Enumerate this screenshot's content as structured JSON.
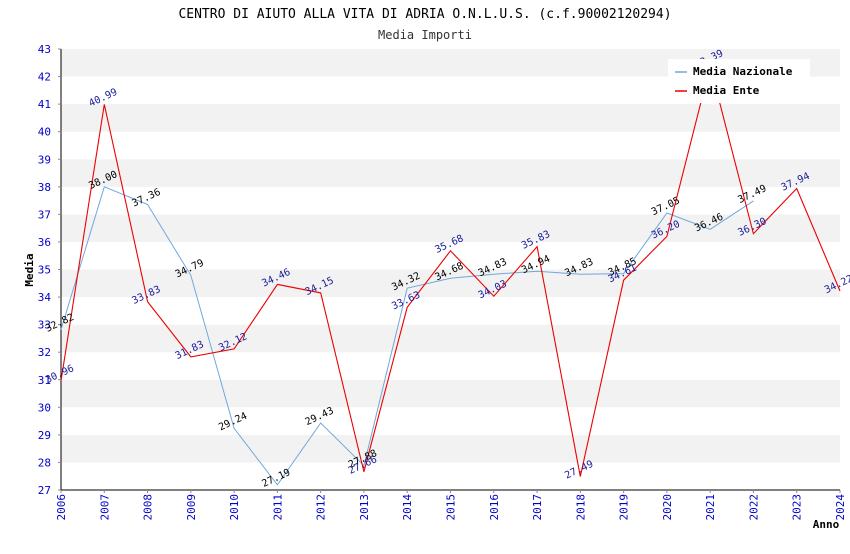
{
  "chart_data": {
    "type": "line",
    "title": "CENTRO DI AIUTO ALLA VITA DI ADRIA O.N.L.U.S. (c.f.90002120294)",
    "subtitle": "Media Importi",
    "xlabel": "Anno",
    "ylabel": "Media",
    "xlim": [
      2006,
      2024
    ],
    "ylim": [
      27,
      43
    ],
    "y_ticks": [
      27,
      28,
      29,
      30,
      31,
      32,
      33,
      34,
      35,
      36,
      37,
      38,
      39,
      40,
      41,
      42,
      43
    ],
    "x_ticks": [
      2006,
      2007,
      2008,
      2009,
      2010,
      2011,
      2012,
      2013,
      2014,
      2015,
      2016,
      2017,
      2018,
      2019,
      2020,
      2021,
      2022,
      2023,
      2024
    ],
    "tick_color": "#0000cc",
    "grid": true,
    "legend_position": "top-right",
    "series": [
      {
        "name": "Media Nazionale",
        "color": "#6fa8dc",
        "label_color": "#000000",
        "x": [
          2006,
          2007,
          2008,
          2009,
          2010,
          2011,
          2012,
          2013,
          2014,
          2015,
          2016,
          2017,
          2018,
          2019,
          2020,
          2021,
          2022
        ],
        "values": [
          32.82,
          38.0,
          37.36,
          34.79,
          29.24,
          27.19,
          29.43,
          27.88,
          34.32,
          34.68,
          34.83,
          34.94,
          34.83,
          34.85,
          37.05,
          36.46,
          37.49
        ],
        "labels": [
          "32.82",
          "38.00",
          "37.36",
          "34.79",
          "29.24",
          "27.19",
          "29.43",
          "27.88",
          "34.32",
          "34.68",
          "34.83",
          "34.94",
          "34.83",
          "34.85",
          "37.05",
          "36.46",
          "37.49"
        ]
      },
      {
        "name": "Media Ente",
        "color": "#ee0000",
        "label_color": "#1a1a99",
        "x": [
          2006,
          2007,
          2008,
          2009,
          2010,
          2011,
          2012,
          2013,
          2014,
          2015,
          2016,
          2017,
          2018,
          2019,
          2020,
          2021,
          2022,
          2023,
          2024
        ],
        "values": [
          30.96,
          40.99,
          33.83,
          31.83,
          32.12,
          34.46,
          34.15,
          27.66,
          33.63,
          35.68,
          34.03,
          35.83,
          27.49,
          34.61,
          36.2,
          42.39,
          36.3,
          37.94,
          34.22
        ],
        "labels": [
          "30.96",
          "40.99",
          "33.83",
          "31.83",
          "32.12",
          "34.46",
          "34.15",
          "27.66",
          "33.63",
          "35.68",
          "34.03",
          "35.83",
          "27.49",
          "34.61",
          "36.20",
          "42.39",
          "36.30",
          "37.94",
          "34.22"
        ]
      }
    ]
  }
}
